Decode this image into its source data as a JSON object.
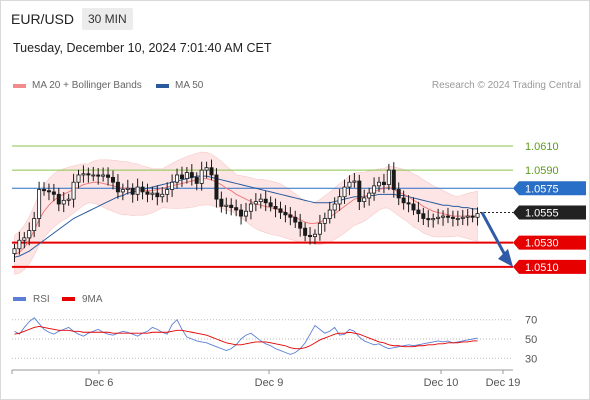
{
  "header": {
    "symbol": "EUR/USD",
    "timeframe": "30 MIN",
    "datetime": "Tuesday, December 10, 2024 7:01:40 AM CET",
    "credit": "Research © 2024 Trading Central"
  },
  "legend": [
    {
      "label": "MA 20 + Bollinger Bands",
      "color": "#f28b8b"
    },
    {
      "label": "MA 50",
      "color": "#2a5a9c"
    }
  ],
  "chart_data": [
    {
      "type": "candlestick",
      "ylim": [
        1.0495,
        1.0648
      ],
      "x_ticks": [
        "Dec 6",
        "Dec 9",
        "Dec 10",
        "Dec 19"
      ],
      "current_price": {
        "value": 1.0555,
        "label": "1.0555",
        "color": "#222222"
      },
      "levels": [
        {
          "value": 1.061,
          "label": "1.0610",
          "kind": "target",
          "color": "#8bc34a"
        },
        {
          "value": 1.059,
          "label": "1.0590",
          "kind": "target",
          "color": "#8bc34a"
        },
        {
          "value": 1.0575,
          "label": "1.0575",
          "kind": "pivot",
          "color": "#2a6fc7"
        },
        {
          "value": 1.053,
          "label": "1.0530",
          "kind": "support",
          "color": "#e60000"
        },
        {
          "value": 1.051,
          "label": "1.0510",
          "kind": "support",
          "color": "#e60000"
        }
      ],
      "price_path": [
        1.0525,
        1.0532,
        1.0534,
        1.054,
        1.055,
        1.0574,
        1.0573,
        1.0572,
        1.057,
        1.0562,
        1.0565,
        1.0566,
        1.058,
        1.0586,
        1.0587,
        1.0586,
        1.0586,
        1.0585,
        1.0586,
        1.0584,
        1.058,
        1.0572,
        1.0574,
        1.0575,
        1.057,
        1.0576,
        1.0572,
        1.057,
        1.0571,
        1.0568,
        1.057,
        1.0574,
        1.058,
        1.0586,
        1.0583,
        1.0588,
        1.0584,
        1.0579,
        1.059,
        1.0592,
        1.0586,
        1.0566,
        1.056,
        1.0561,
        1.0559,
        1.0557,
        1.0552,
        1.0556,
        1.0562,
        1.0564,
        1.0566,
        1.0563,
        1.056,
        1.0558,
        1.0555,
        1.0553,
        1.0551,
        1.0547,
        1.0542,
        1.0536,
        1.0535,
        1.0537,
        1.0546,
        1.055,
        1.0557,
        1.0562,
        1.0568,
        1.0576,
        1.058,
        1.0581,
        1.0564,
        1.0567,
        1.0571,
        1.0577,
        1.058,
        1.0578,
        1.059,
        1.0574,
        1.0567,
        1.0563,
        1.0562,
        1.0557,
        1.0554,
        1.055,
        1.0549,
        1.055,
        1.0551,
        1.0552,
        1.0551,
        1.055,
        1.055,
        1.0551,
        1.0552,
        1.0551,
        1.0554
      ],
      "ma20": [
        1.052,
        1.0522,
        1.0526,
        1.0532,
        1.054,
        1.0549,
        1.0556,
        1.0561,
        1.0565,
        1.0568,
        1.057,
        1.0572,
        1.0574,
        1.0576,
        1.0578,
        1.0579,
        1.058,
        1.058,
        1.0579,
        1.0578,
        1.0577,
        1.0576,
        1.0575,
        1.0575,
        1.0574,
        1.0574,
        1.0573,
        1.0573,
        1.0573,
        1.0574,
        1.0575,
        1.0576,
        1.0577,
        1.0578,
        1.0579,
        1.058,
        1.0581,
        1.0582,
        1.0583,
        1.0583,
        1.0582,
        1.058,
        1.0578,
        1.0575,
        1.0573,
        1.057,
        1.0568,
        1.0566,
        1.0564,
        1.0562,
        1.0561,
        1.056,
        1.0559,
        1.0558,
        1.0557,
        1.0555,
        1.0553,
        1.0551,
        1.0549,
        1.0547,
        1.0546,
        1.0546,
        1.0547,
        1.0549,
        1.0551,
        1.0554,
        1.0557,
        1.056,
        1.0563,
        1.0566,
        1.0567,
        1.0568,
        1.057,
        1.0572,
        1.0574,
        1.0575,
        1.0576,
        1.0574,
        1.0572,
        1.057,
        1.0568,
        1.0565,
        1.0563,
        1.056,
        1.0558,
        1.0556,
        1.0555,
        1.0554,
        1.0553,
        1.0552,
        1.0552,
        1.0552,
        1.0552,
        1.0552,
        1.0552
      ],
      "ma50": [
        1.0518,
        1.0519,
        1.0521,
        1.0523,
        1.0526,
        1.0529,
        1.0532,
        1.0535,
        1.0538,
        1.0541,
        1.0544,
        1.0547,
        1.055,
        1.0552,
        1.0554,
        1.0556,
        1.0558,
        1.056,
        1.0562,
        1.0564,
        1.0566,
        1.0568,
        1.0569,
        1.0571,
        1.0572,
        1.0573,
        1.0574,
        1.0575,
        1.0576,
        1.0577,
        1.0578,
        1.0579,
        1.058,
        1.0581,
        1.0582,
        1.0583,
        1.0584,
        1.0585,
        1.0585,
        1.0585,
        1.0584,
        1.0583,
        1.0582,
        1.0581,
        1.058,
        1.0579,
        1.0578,
        1.0577,
        1.0576,
        1.0575,
        1.0574,
        1.0573,
        1.0572,
        1.0571,
        1.057,
        1.0569,
        1.0568,
        1.0567,
        1.0566,
        1.0565,
        1.0564,
        1.0563,
        1.0563,
        1.0563,
        1.0563,
        1.0564,
        1.0565,
        1.0566,
        1.0567,
        1.0568,
        1.0568,
        1.0568,
        1.0569,
        1.0569,
        1.057,
        1.057,
        1.057,
        1.057,
        1.0569,
        1.0569,
        1.0568,
        1.0567,
        1.0566,
        1.0565,
        1.0564,
        1.0563,
        1.0562,
        1.0561,
        1.0561,
        1.056,
        1.056,
        1.0559,
        1.0559,
        1.0558,
        1.0558
      ],
      "projection": {
        "from": 1.0555,
        "to": 1.051
      }
    },
    {
      "type": "line",
      "legend": [
        {
          "label": "RSI",
          "color": "#5b7fd6"
        },
        {
          "label": "9MA",
          "color": "#e60000"
        }
      ],
      "ylim": [
        22,
        78
      ],
      "y_ticks": [
        70,
        50,
        30
      ],
      "rsi": [
        58,
        55,
        62,
        68,
        72,
        66,
        60,
        57,
        55,
        58,
        60,
        62,
        58,
        55,
        53,
        56,
        58,
        60,
        57,
        55,
        54,
        56,
        58,
        57,
        55,
        53,
        56,
        58,
        62,
        60,
        57,
        55,
        65,
        70,
        60,
        52,
        50,
        48,
        47,
        46,
        44,
        42,
        40,
        38,
        40,
        44,
        50,
        54,
        56,
        52,
        48,
        45,
        43,
        40,
        38,
        36,
        34,
        36,
        40,
        46,
        55,
        64,
        60,
        56,
        58,
        62,
        54,
        55,
        60,
        58,
        52,
        48,
        46,
        44,
        45,
        42,
        40,
        41,
        42,
        43,
        44,
        43,
        44,
        45,
        46,
        47,
        48,
        47,
        48,
        46,
        47,
        48,
        49,
        50,
        51
      ],
      "ma9": [
        55,
        56,
        58,
        60,
        62,
        63,
        62,
        61,
        60,
        59,
        59,
        59,
        58,
        58,
        57,
        57,
        57,
        57,
        57,
        57,
        56,
        56,
        56,
        56,
        56,
        56,
        56,
        56,
        57,
        57,
        57,
        57,
        58,
        59,
        59,
        58,
        57,
        56,
        55,
        54,
        52,
        50,
        48,
        46,
        45,
        44,
        44,
        45,
        46,
        47,
        47,
        47,
        46,
        45,
        44,
        43,
        41,
        40,
        40,
        41,
        43,
        46,
        49,
        51,
        53,
        55,
        56,
        56,
        57,
        56,
        55,
        53,
        51,
        49,
        47,
        46,
        44,
        43,
        43,
        42,
        42,
        42,
        43,
        43,
        44,
        44,
        45,
        45,
        46,
        46,
        46,
        47,
        47,
        48,
        48
      ]
    }
  ]
}
